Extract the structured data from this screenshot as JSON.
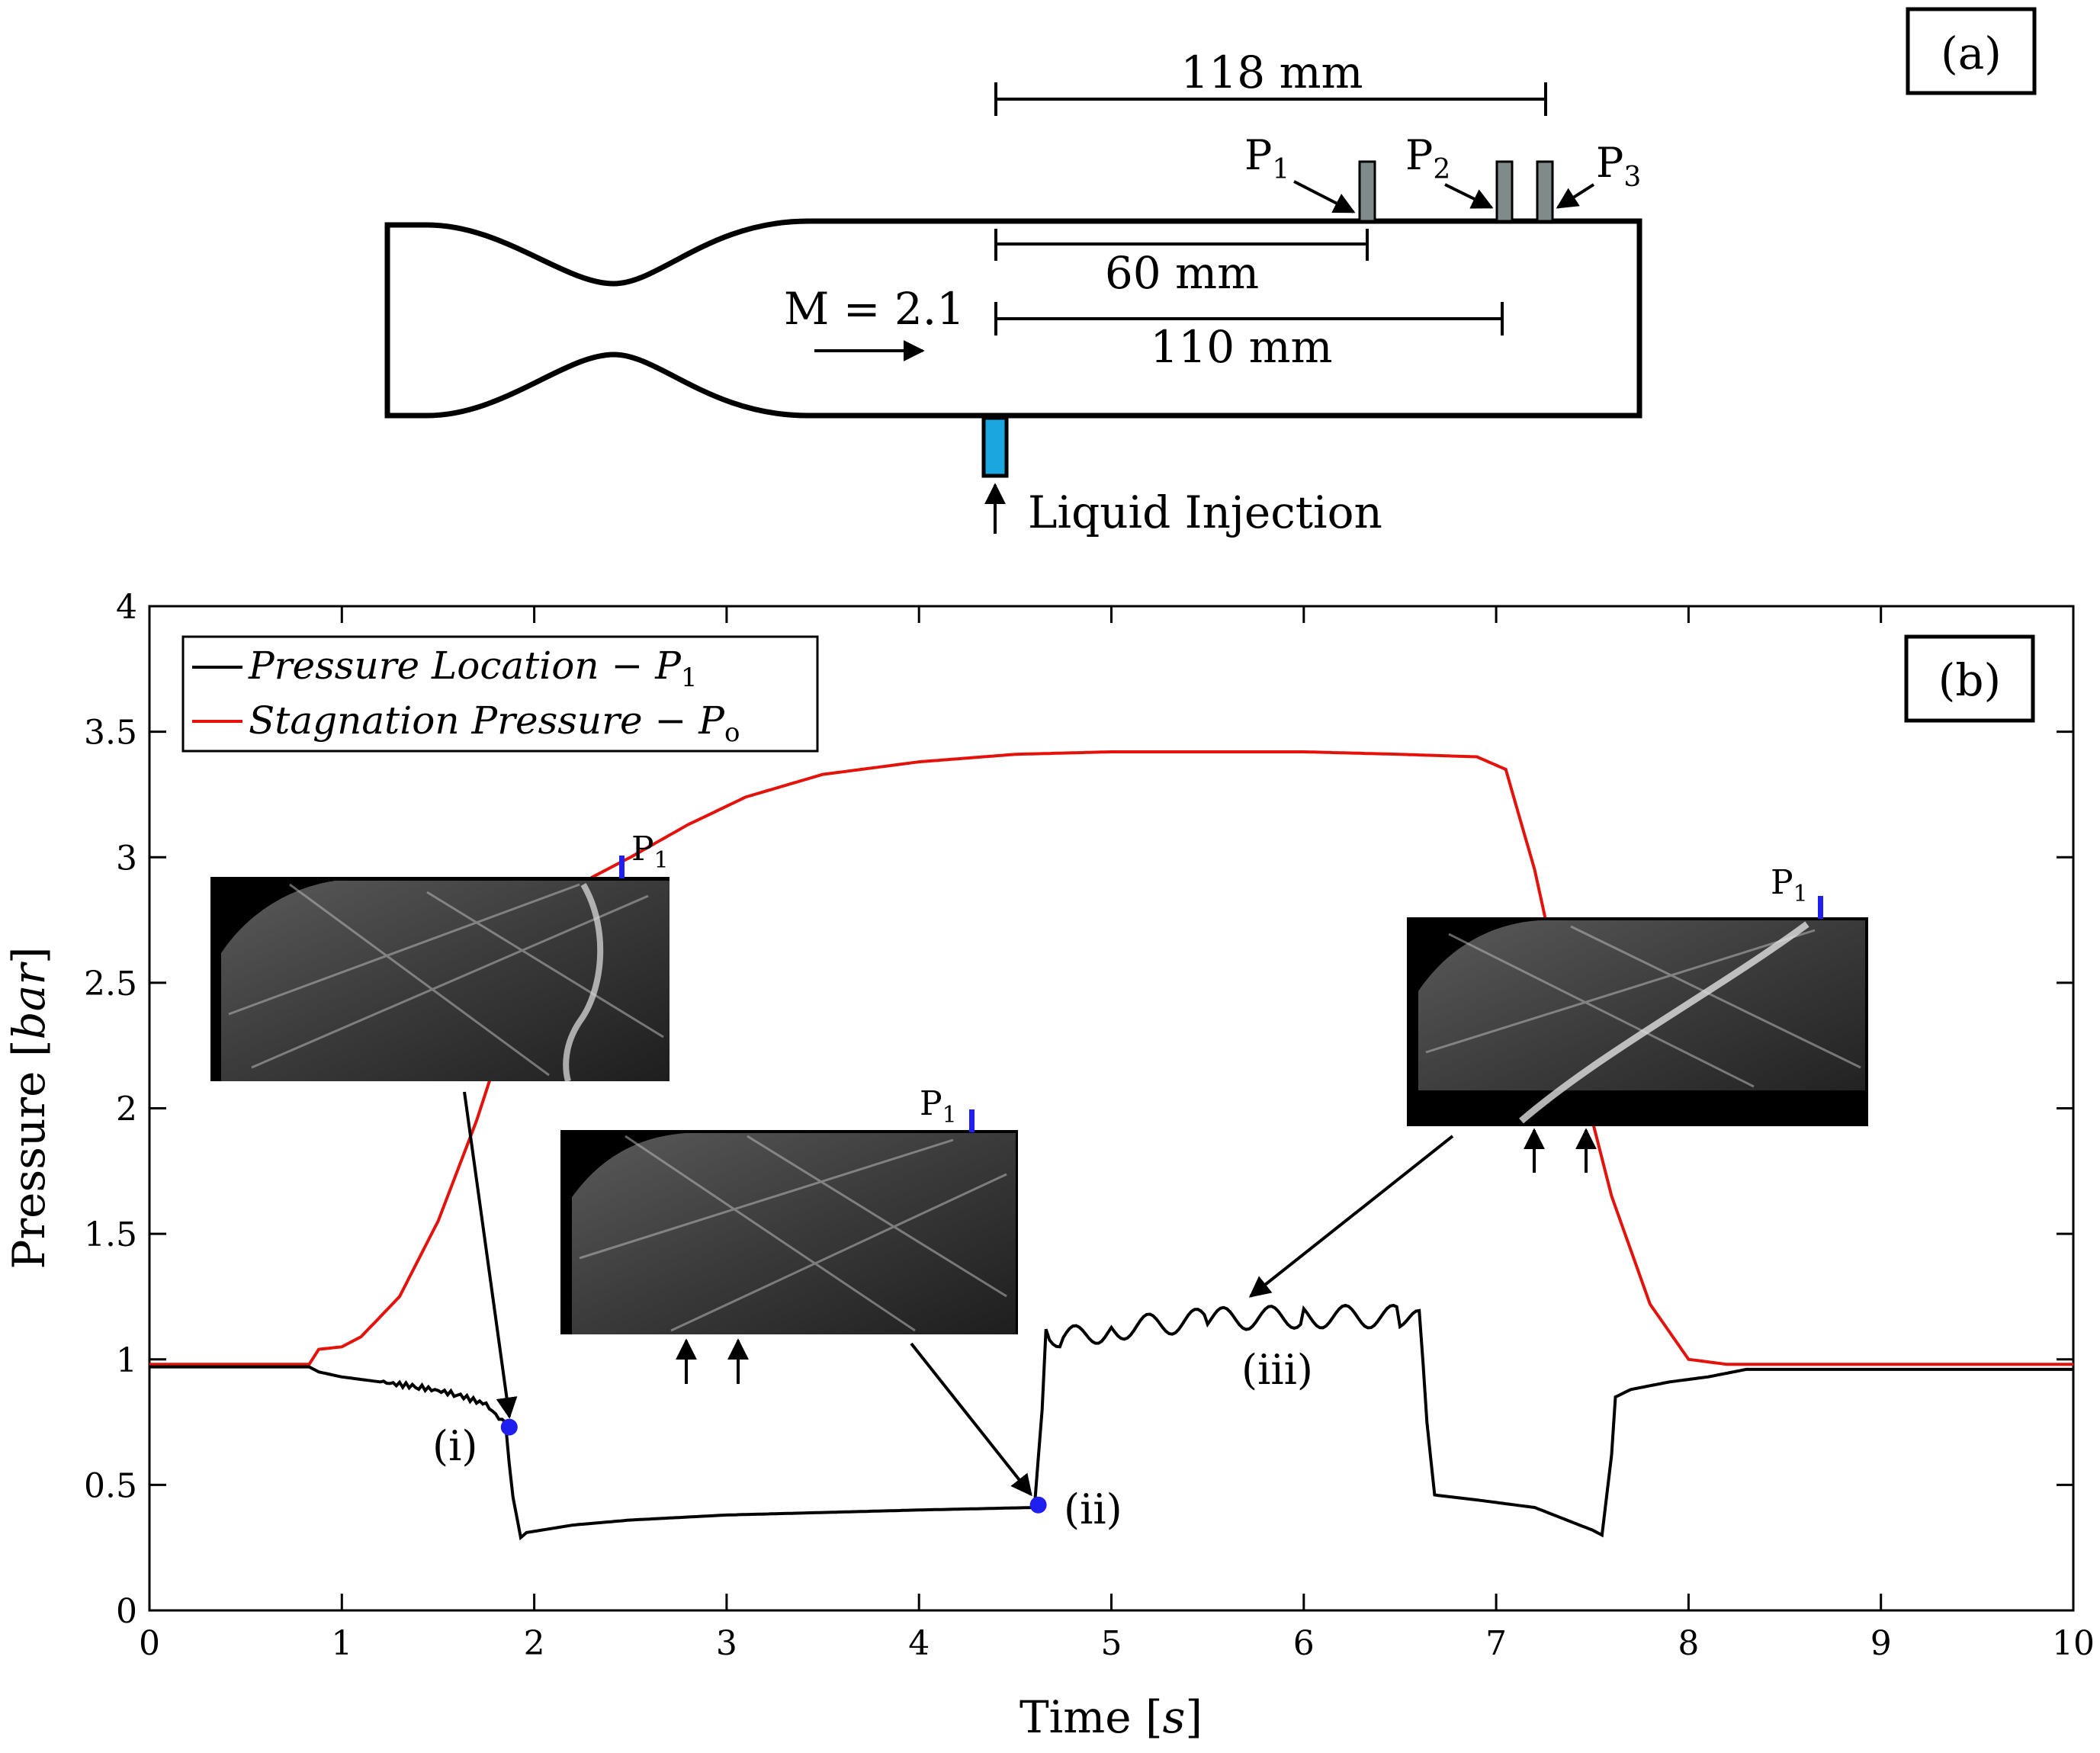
{
  "panel_a": {
    "panel_label": "(a)",
    "dimension_118": "118 mm",
    "dimension_60": "60 mm",
    "dimension_110": "110 mm",
    "mach": "M = 2.1",
    "injection": "Liquid Injection",
    "ports": [
      "P",
      "P",
      "P"
    ],
    "port_subs": [
      "1",
      "2",
      "3"
    ],
    "injector_color": "#1ba6e0"
  },
  "chart_data": {
    "type": "line",
    "panel_label": "(b)",
    "xlabel_main": "Time ",
    "xlabel_unit": "s",
    "ylabel_main": "Pressure ",
    "ylabel_unit": "bar",
    "xlim": [
      0,
      10
    ],
    "ylim": [
      0,
      4
    ],
    "xticks": [
      "0",
      "1",
      "2",
      "3",
      "4",
      "5",
      "6",
      "7",
      "8",
      "9",
      "10"
    ],
    "yticks": [
      "0",
      "0.5",
      "1",
      "1.5",
      "2",
      "2.5",
      "3",
      "3.5",
      "4"
    ],
    "legend_position": "top-left",
    "series": [
      {
        "name": "Pressure Location",
        "name_sub": "1",
        "name_symbol": "P",
        "color": "#000000",
        "x": [
          0,
          0.83,
          0.88,
          1.0,
          1.2,
          1.4,
          1.6,
          1.75,
          1.85,
          1.89,
          1.93,
          1.96,
          2.2,
          2.5,
          3.0,
          3.5,
          4.0,
          4.6,
          4.64,
          4.66,
          4.75,
          5.0,
          5.5,
          6.0,
          6.5,
          6.6,
          6.64,
          6.68,
          6.9,
          7.2,
          7.5,
          7.55,
          7.6,
          7.62,
          7.7,
          7.9,
          8.1,
          8.3,
          10
        ],
        "y": [
          0.97,
          0.97,
          0.95,
          0.93,
          0.91,
          0.89,
          0.86,
          0.82,
          0.74,
          0.45,
          0.29,
          0.31,
          0.34,
          0.36,
          0.38,
          0.39,
          0.4,
          0.41,
          0.8,
          1.12,
          1.08,
          1.12,
          1.16,
          1.17,
          1.17,
          1.15,
          0.75,
          0.46,
          0.44,
          0.41,
          0.32,
          0.3,
          0.62,
          0.85,
          0.88,
          0.91,
          0.93,
          0.96,
          0.96
        ]
      },
      {
        "name": "Stagnation Pressure",
        "name_sub": "o",
        "name_symbol": "P",
        "color": "#e3120b",
        "x": [
          0,
          0.83,
          0.88,
          1.0,
          1.1,
          1.3,
          1.5,
          1.7,
          1.9,
          2.1,
          2.3,
          2.5,
          2.8,
          3.1,
          3.5,
          4.0,
          4.5,
          5.0,
          5.5,
          6.0,
          6.5,
          6.9,
          7.05,
          7.2,
          7.4,
          7.6,
          7.8,
          8.0,
          8.2,
          8.3,
          10
        ],
        "y": [
          0.98,
          0.98,
          1.04,
          1.05,
          1.09,
          1.25,
          1.55,
          1.95,
          2.42,
          2.75,
          2.92,
          3.0,
          3.13,
          3.24,
          3.33,
          3.38,
          3.41,
          3.42,
          3.42,
          3.42,
          3.41,
          3.4,
          3.35,
          2.95,
          2.25,
          1.65,
          1.22,
          1.0,
          0.98,
          0.98,
          0.98
        ]
      }
    ],
    "annotations": [
      "(i)",
      "(ii)",
      "(iii)"
    ],
    "markers": [
      {
        "label": "(i)",
        "x": 1.87,
        "y": 0.73
      },
      {
        "label": "(ii)",
        "x": 4.62,
        "y": 0.42
      }
    ],
    "marker_color": "#1f1fef",
    "inset_port_symbol": "P",
    "inset_port_sub": "1"
  }
}
